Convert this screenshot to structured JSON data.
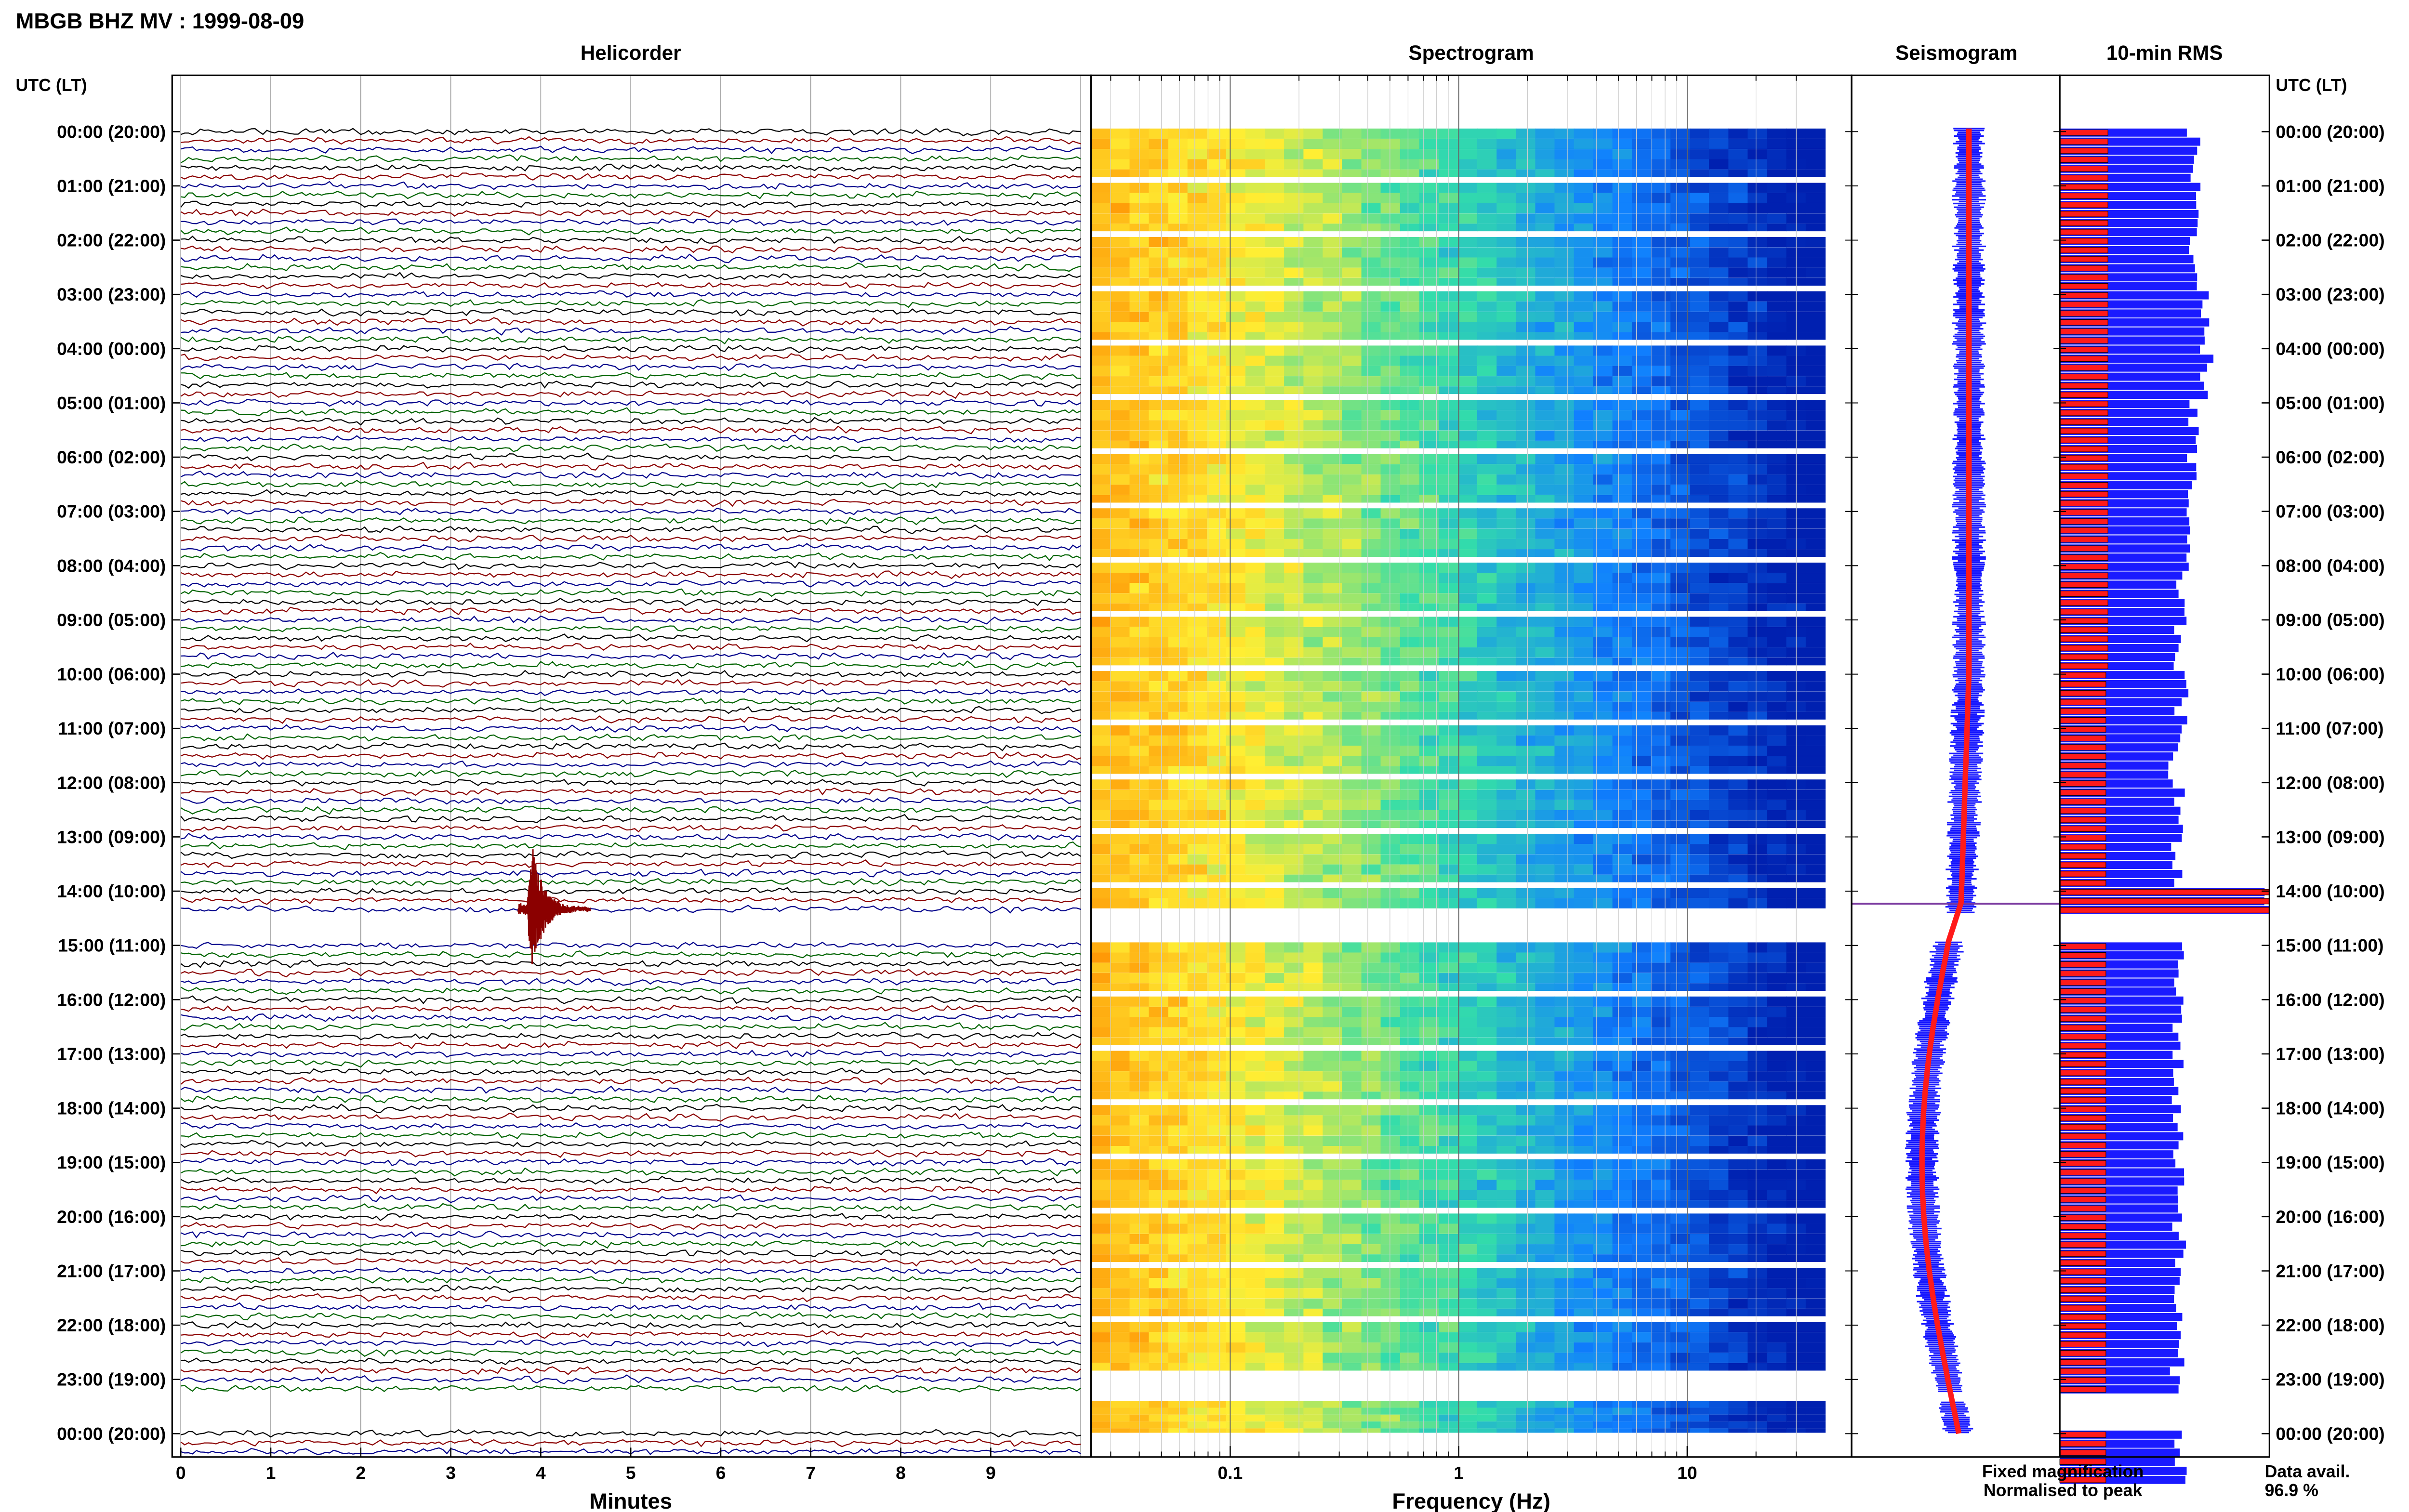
{
  "figure": {
    "title": "MBGB BHZ MV : 1999-08-09",
    "utc_label_left": "UTC (LT)",
    "utc_label_right": "UTC (LT)"
  },
  "panels": {
    "helicorder": "Helicorder",
    "spectrogram": "Spectrogram",
    "seismogram": "Seismogram",
    "rms": "10-min RMS"
  },
  "axes": {
    "minutes_label": "Minutes",
    "frequency_label": "Frequency (Hz)",
    "minute_ticks": [
      "0",
      "1",
      "2",
      "3",
      "4",
      "5",
      "6",
      "7",
      "8",
      "9"
    ],
    "frequency_ticks": [
      "0.1",
      "1",
      "10"
    ]
  },
  "legend": {
    "fixed": "Fixed magnification",
    "normalised": "Normalised to peak",
    "fixed_color": "#1a1aff",
    "normalised_color": "#ff1a1a"
  },
  "availability": {
    "label": "Data avail.",
    "value": "96.9 %"
  },
  "time_labels": [
    "00:00 (20:00)",
    "01:00 (21:00)",
    "02:00 (22:00)",
    "03:00 (23:00)",
    "04:00 (00:00)",
    "05:00 (01:00)",
    "06:00 (02:00)",
    "07:00 (03:00)",
    "08:00 (04:00)",
    "09:00 (05:00)",
    "10:00 (06:00)",
    "11:00 (07:00)",
    "12:00 (08:00)",
    "13:00 (09:00)",
    "14:00 (10:00)",
    "15:00 (11:00)",
    "16:00 (12:00)",
    "17:00 (13:00)",
    "18:00 (14:00)",
    "19:00 (15:00)",
    "20:00 (16:00)",
    "21:00 (17:00)",
    "22:00 (18:00)",
    "23:00 (19:00)",
    "00:00 (20:00)"
  ],
  "chart_data": {
    "type": "heatmap",
    "station": "MBGB BHZ MV",
    "date": "1999-08-09",
    "helicorder": {
      "trace_colors": [
        "#000000",
        "#8b0000",
        "#00008b",
        "#006400"
      ],
      "traces_per_hour": 6,
      "event": {
        "hour": 14,
        "minute": 3.9
      },
      "data_gaps": [
        {
          "hour": 14,
          "from_minute": 4.5,
          "to_minute": 10
        },
        {
          "hour": 23,
          "from_minute": 0,
          "to_minute": 10
        }
      ]
    },
    "spectrogram": {
      "freq_range_hz": [
        0.02,
        40
      ],
      "freq_scale": "log",
      "colormap": [
        "#ff8c00",
        "#ffee33",
        "#33ddaa",
        "#1080ff",
        "#0020b0"
      ]
    },
    "rms": {
      "hourly_fixed": [
        0.64,
        0.66,
        0.62,
        0.68,
        0.7,
        0.64,
        0.62,
        0.6,
        0.58,
        0.57,
        0.58,
        0.55,
        0.57,
        0.55,
        1.0,
        0.56,
        0.57,
        0.56,
        0.56,
        0.58,
        0.57,
        0.56,
        0.56,
        0.55,
        0.58
      ],
      "hourly_normalised": [
        0.23,
        0.23,
        0.23,
        0.23,
        0.23,
        0.23,
        0.23,
        0.23,
        0.23,
        0.23,
        0.22,
        0.22,
        0.22,
        0.22,
        1.0,
        0.22,
        0.22,
        0.22,
        0.22,
        0.22,
        0.22,
        0.22,
        0.22,
        0.22,
        0.22
      ]
    },
    "data_availability_percent": 96.9
  }
}
